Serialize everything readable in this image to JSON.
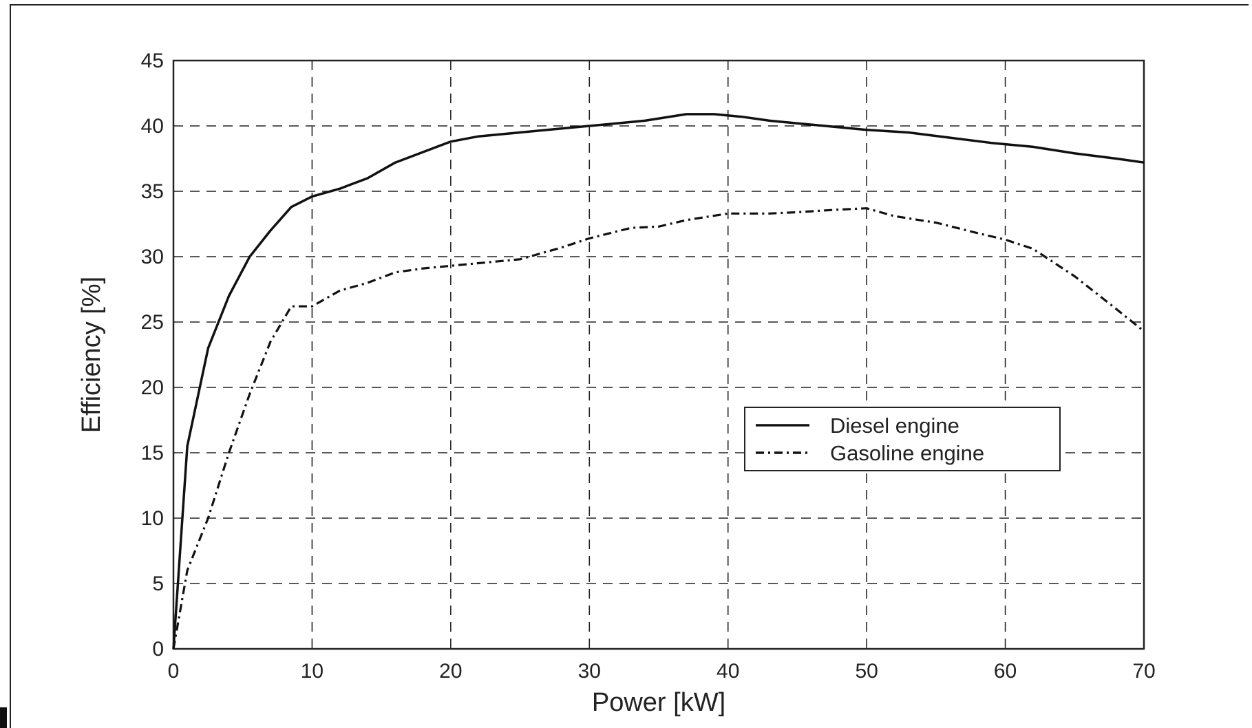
{
  "chart_data": {
    "type": "line",
    "title": "",
    "xlabel": "Power [kW]",
    "ylabel": "Efficiency [%]",
    "xlim": [
      0,
      70
    ],
    "ylim": [
      0,
      45
    ],
    "xticks": [
      0,
      10,
      20,
      30,
      40,
      50,
      60,
      70
    ],
    "yticks": [
      0,
      5,
      10,
      15,
      20,
      25,
      30,
      35,
      40,
      45
    ],
    "grid": true,
    "legend_position": "center-right",
    "series": [
      {
        "name": "Diesel engine",
        "line_style": "solid",
        "color": "#111111",
        "x": [
          0,
          1,
          2.5,
          4,
          5.5,
          7,
          8.5,
          10,
          12,
          14,
          16,
          18,
          20,
          22,
          25,
          28,
          30,
          32,
          34,
          37,
          39,
          41,
          43,
          45,
          47,
          50,
          53,
          56,
          59,
          62,
          65,
          68,
          70
        ],
        "y": [
          0,
          15.5,
          23,
          27,
          30,
          32,
          33.8,
          34.6,
          35.2,
          36,
          37.2,
          38,
          38.8,
          39.2,
          39.5,
          39.8,
          40,
          40.2,
          40.4,
          40.9,
          40.9,
          40.7,
          40.4,
          40.2,
          40,
          39.7,
          39.5,
          39.1,
          38.7,
          38.4,
          37.9,
          37.5,
          37.2
        ]
      },
      {
        "name": "Gasoline engine",
        "line_style": "dash-dot",
        "color": "#111111",
        "x": [
          0,
          1,
          2.5,
          4,
          5.5,
          7,
          8.5,
          10,
          12,
          14,
          16,
          18,
          20,
          22,
          25,
          28,
          30,
          33,
          35,
          37,
          40,
          43,
          45,
          48,
          50,
          52,
          55,
          58,
          60,
          62,
          65,
          68,
          70
        ],
        "y": [
          0,
          6,
          10,
          15,
          19.5,
          23.5,
          26.2,
          26.2,
          27.4,
          28,
          28.8,
          29.1,
          29.3,
          29.5,
          29.8,
          30.7,
          31.4,
          32.2,
          32.3,
          32.8,
          33.3,
          33.3,
          33.4,
          33.6,
          33.7,
          33.1,
          32.6,
          31.8,
          31.3,
          30.6,
          28.5,
          26,
          24.3
        ]
      }
    ]
  }
}
